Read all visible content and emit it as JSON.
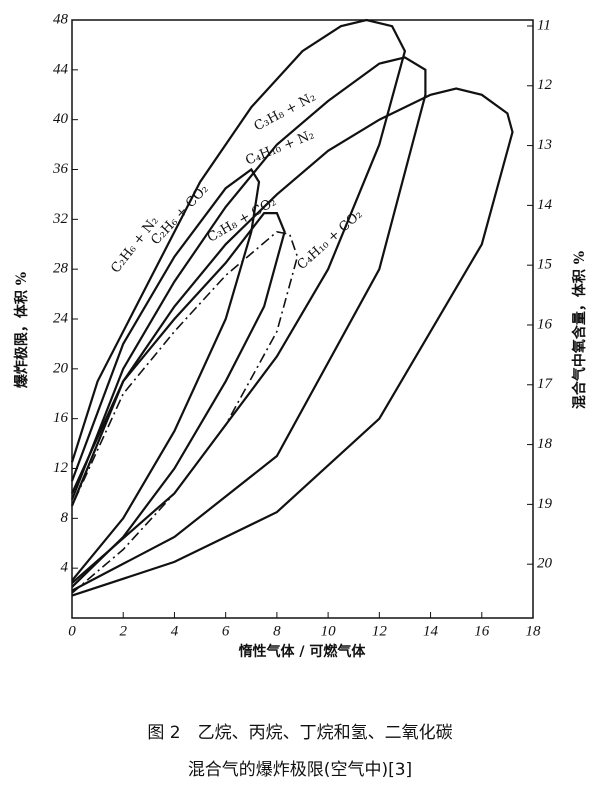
{
  "chart_data": {
    "type": "line",
    "caption": [
      "图 2　乙烷、丙烷、丁烷和氢、二氧化碳",
      "混合气的爆炸极限(空气中)[3]"
    ],
    "x_label": "惰性气体 / 可燃气体",
    "y_label": "爆炸极限，体积 %",
    "y2_label": "混合气中氧含量，体积 %",
    "xlim": [
      0,
      18
    ],
    "xticks": [
      0,
      2,
      4,
      6,
      8,
      10,
      12,
      14,
      16,
      18
    ],
    "ylim": [
      0,
      48
    ],
    "yticks": [
      4,
      8,
      12,
      16,
      20,
      24,
      28,
      32,
      36,
      40,
      44,
      48
    ],
    "y2lim": [
      20.9,
      10.9
    ],
    "y2ticks": [
      11,
      12,
      13,
      14,
      15,
      16,
      17,
      18,
      19,
      20
    ],
    "series": [
      {
        "name": "C₂H₆ + N₂",
        "color": "#111111",
        "line_style": "solid",
        "x": [
          0,
          4,
          8,
          10,
          12,
          13,
          12.5,
          11.5,
          10.5,
          9,
          7,
          5,
          3,
          1,
          0
        ],
        "y": [
          2.8,
          10,
          21,
          28,
          38,
          45.5,
          47.5,
          48,
          47.5,
          45.5,
          41,
          35,
          27,
          19,
          12.5
        ]
      },
      {
        "name": "C₃H₈ + N₂",
        "color": "#111111",
        "line_style": "solid",
        "x": [
          0,
          4,
          8,
          12,
          13.8,
          13.8,
          13,
          12,
          10,
          8,
          6,
          4,
          2,
          0
        ],
        "y": [
          2.2,
          6.5,
          13,
          28,
          42,
          44,
          45,
          44.5,
          41.5,
          38,
          33,
          27,
          20,
          9.5
        ]
      },
      {
        "name": "C₄H₁₀ + N₂",
        "color": "#111111",
        "line_style": "solid",
        "x": [
          0,
          4,
          8,
          12,
          16,
          17.2,
          17,
          16,
          15,
          14,
          12,
          10,
          8,
          6,
          4,
          2,
          0
        ],
        "y": [
          1.8,
          4.5,
          8.5,
          16,
          30,
          39,
          40.5,
          42,
          42.5,
          42,
          40,
          37.5,
          34,
          30,
          25,
          19,
          9
        ]
      },
      {
        "name": "C₂H₆ + CO₂",
        "color": "#111111",
        "line_style": "solid",
        "x": [
          0,
          2,
          4,
          6,
          7,
          7.3,
          7,
          6,
          4,
          2,
          0
        ],
        "y": [
          3,
          8,
          15,
          24,
          31,
          35,
          36,
          34.5,
          29,
          22,
          11
        ]
      },
      {
        "name": "C₃H₈ + CO₂",
        "color": "#111111",
        "line_style": "solid",
        "x": [
          0,
          2,
          4,
          6,
          7.5,
          8.3,
          8,
          7.5,
          6,
          4,
          2,
          0
        ],
        "y": [
          2.5,
          6.5,
          12,
          19,
          25,
          31,
          32.5,
          32.5,
          28.5,
          24,
          19,
          10
        ]
      },
      {
        "name": "C₄H₁₀ + CO₂",
        "color": "#111111",
        "line_style": "dash-dot",
        "x": [
          0,
          2,
          4,
          6,
          8,
          8.8,
          8.5,
          8,
          6,
          4,
          2,
          0
        ],
        "y": [
          2,
          5.5,
          10,
          15.5,
          23,
          29,
          30.8,
          31,
          27.5,
          23,
          18,
          9
        ]
      }
    ]
  }
}
